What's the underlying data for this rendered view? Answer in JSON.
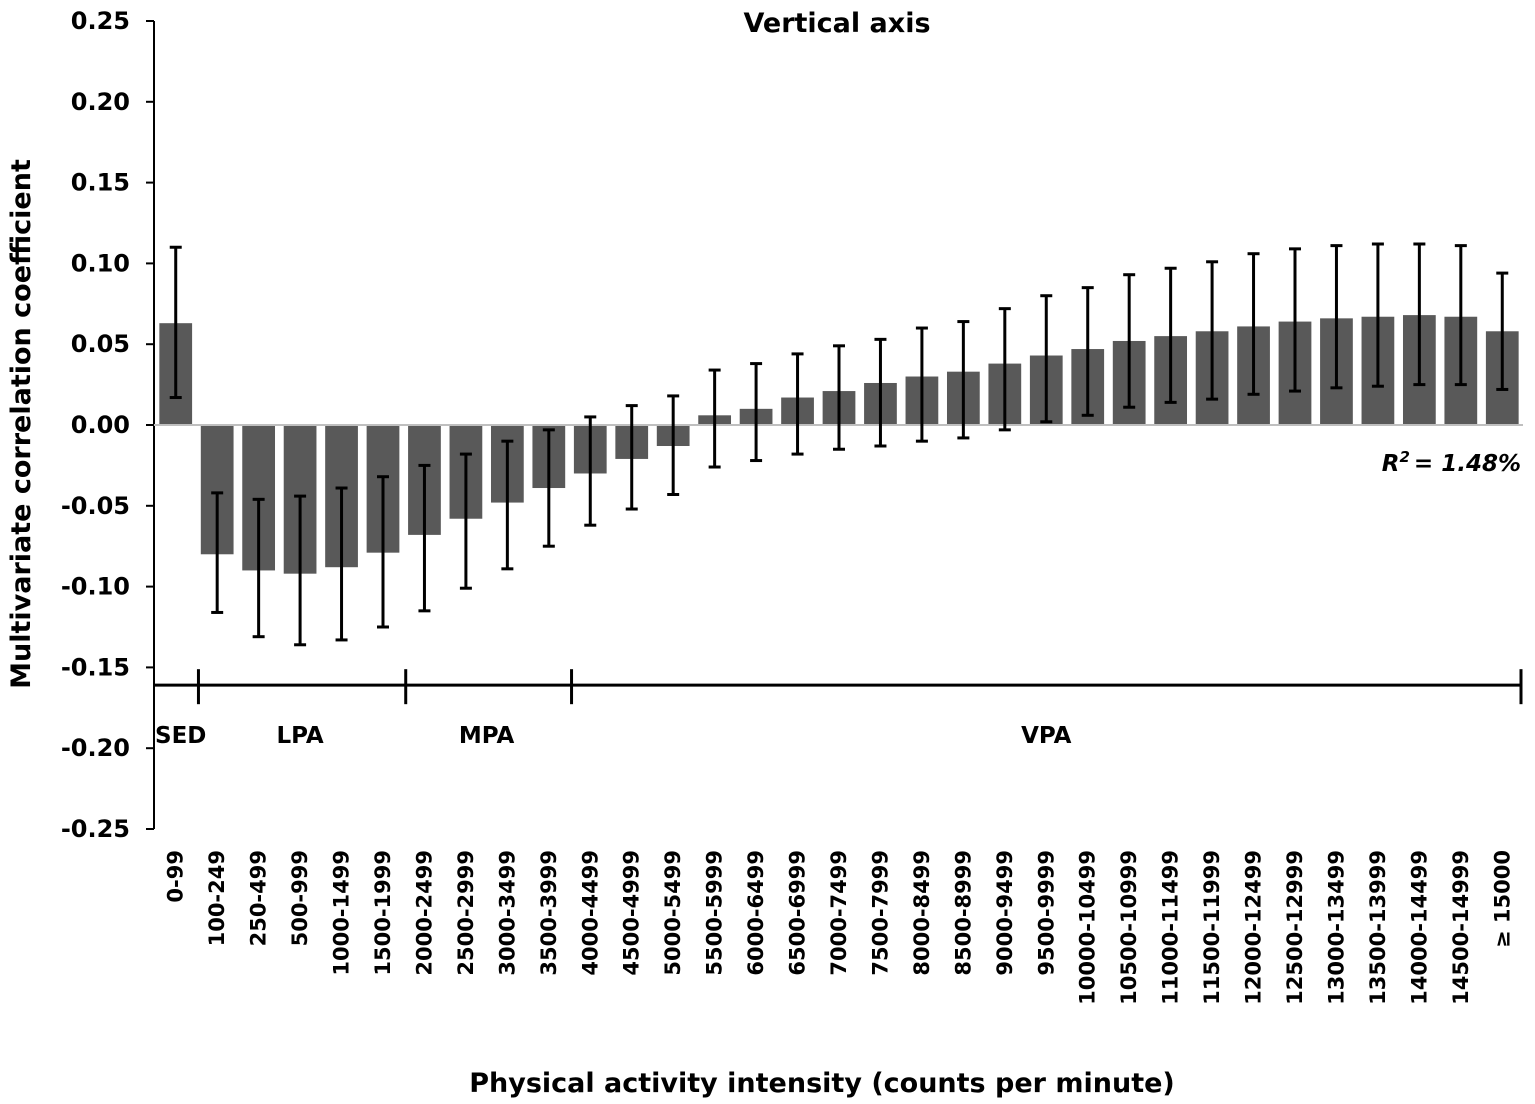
{
  "chart_data": {
    "type": "bar",
    "title": "Vertical axis",
    "xlabel": "Physical activity intensity (counts per minute)",
    "ylabel": "Multivariate correlation coefficient",
    "ylim": [
      -0.25,
      0.25
    ],
    "yticks": [
      "0.25",
      "0.20",
      "0.15",
      "0.10",
      "0.05",
      "0.00",
      "-0.05",
      "-0.10",
      "-0.15",
      "-0.20",
      "-0.25"
    ],
    "ytick_values": [
      0.25,
      0.2,
      0.15,
      0.1,
      0.05,
      0.0,
      -0.05,
      -0.1,
      -0.15,
      -0.2,
      -0.25
    ],
    "categories": [
      "0-99",
      "100-249",
      "250-499",
      "500-999",
      "1000-1499",
      "1500-1999",
      "2000-2499",
      "2500-2999",
      "3000-3499",
      "3500-3999",
      "4000-4499",
      "4500-4999",
      "5000-5499",
      "5500-5999",
      "6000-6499",
      "6500-6999",
      "7000-7499",
      "7500-7999",
      "8000-8499",
      "8500-8999",
      "9000-9499",
      "9500-9999",
      "10000-10499",
      "10500-10999",
      "11000-11499",
      "11500-11999",
      "12000-12499",
      "12500-12999",
      "13000-13499",
      "13500-13999",
      "14000-14499",
      "14500-14999",
      "≥ 15000"
    ],
    "values": [
      0.063,
      -0.08,
      -0.09,
      -0.092,
      -0.088,
      -0.079,
      -0.068,
      -0.058,
      -0.048,
      -0.039,
      -0.03,
      -0.021,
      -0.013,
      0.006,
      0.01,
      0.017,
      0.021,
      0.026,
      0.03,
      0.033,
      0.038,
      0.043,
      0.047,
      0.052,
      0.055,
      0.058,
      0.061,
      0.064,
      0.066,
      0.067,
      0.068,
      0.067,
      0.058
    ],
    "error_lower": [
      0.017,
      -0.116,
      -0.131,
      -0.136,
      -0.133,
      -0.125,
      -0.115,
      -0.101,
      -0.089,
      -0.075,
      -0.062,
      -0.052,
      -0.043,
      -0.026,
      -0.022,
      -0.018,
      -0.015,
      -0.013,
      -0.01,
      -0.008,
      -0.003,
      0.002,
      0.006,
      0.011,
      0.014,
      0.016,
      0.019,
      0.021,
      0.023,
      0.024,
      0.025,
      0.025,
      0.022
    ],
    "error_upper": [
      0.11,
      -0.042,
      -0.046,
      -0.044,
      -0.039,
      -0.032,
      -0.025,
      -0.018,
      -0.01,
      -0.003,
      0.005,
      0.012,
      0.018,
      0.034,
      0.038,
      0.044,
      0.049,
      0.053,
      0.06,
      0.064,
      0.072,
      0.08,
      0.085,
      0.093,
      0.097,
      0.101,
      0.106,
      0.109,
      0.111,
      0.112,
      0.112,
      0.111,
      0.094
    ],
    "bar_color": "#595959",
    "annotation": "= 1.48%",
    "annotation_symbol": "R",
    "annotation_superscript": "2",
    "zones": {
      "line_value": -0.161,
      "items": [
        {
          "label": "SED",
          "start": 0,
          "end": 0
        },
        {
          "label": "LPA",
          "start": 1,
          "end": 5
        },
        {
          "label": "MPA",
          "start": 6,
          "end": 9
        },
        {
          "label": "VPA",
          "start": 10,
          "end": 32
        }
      ]
    }
  }
}
